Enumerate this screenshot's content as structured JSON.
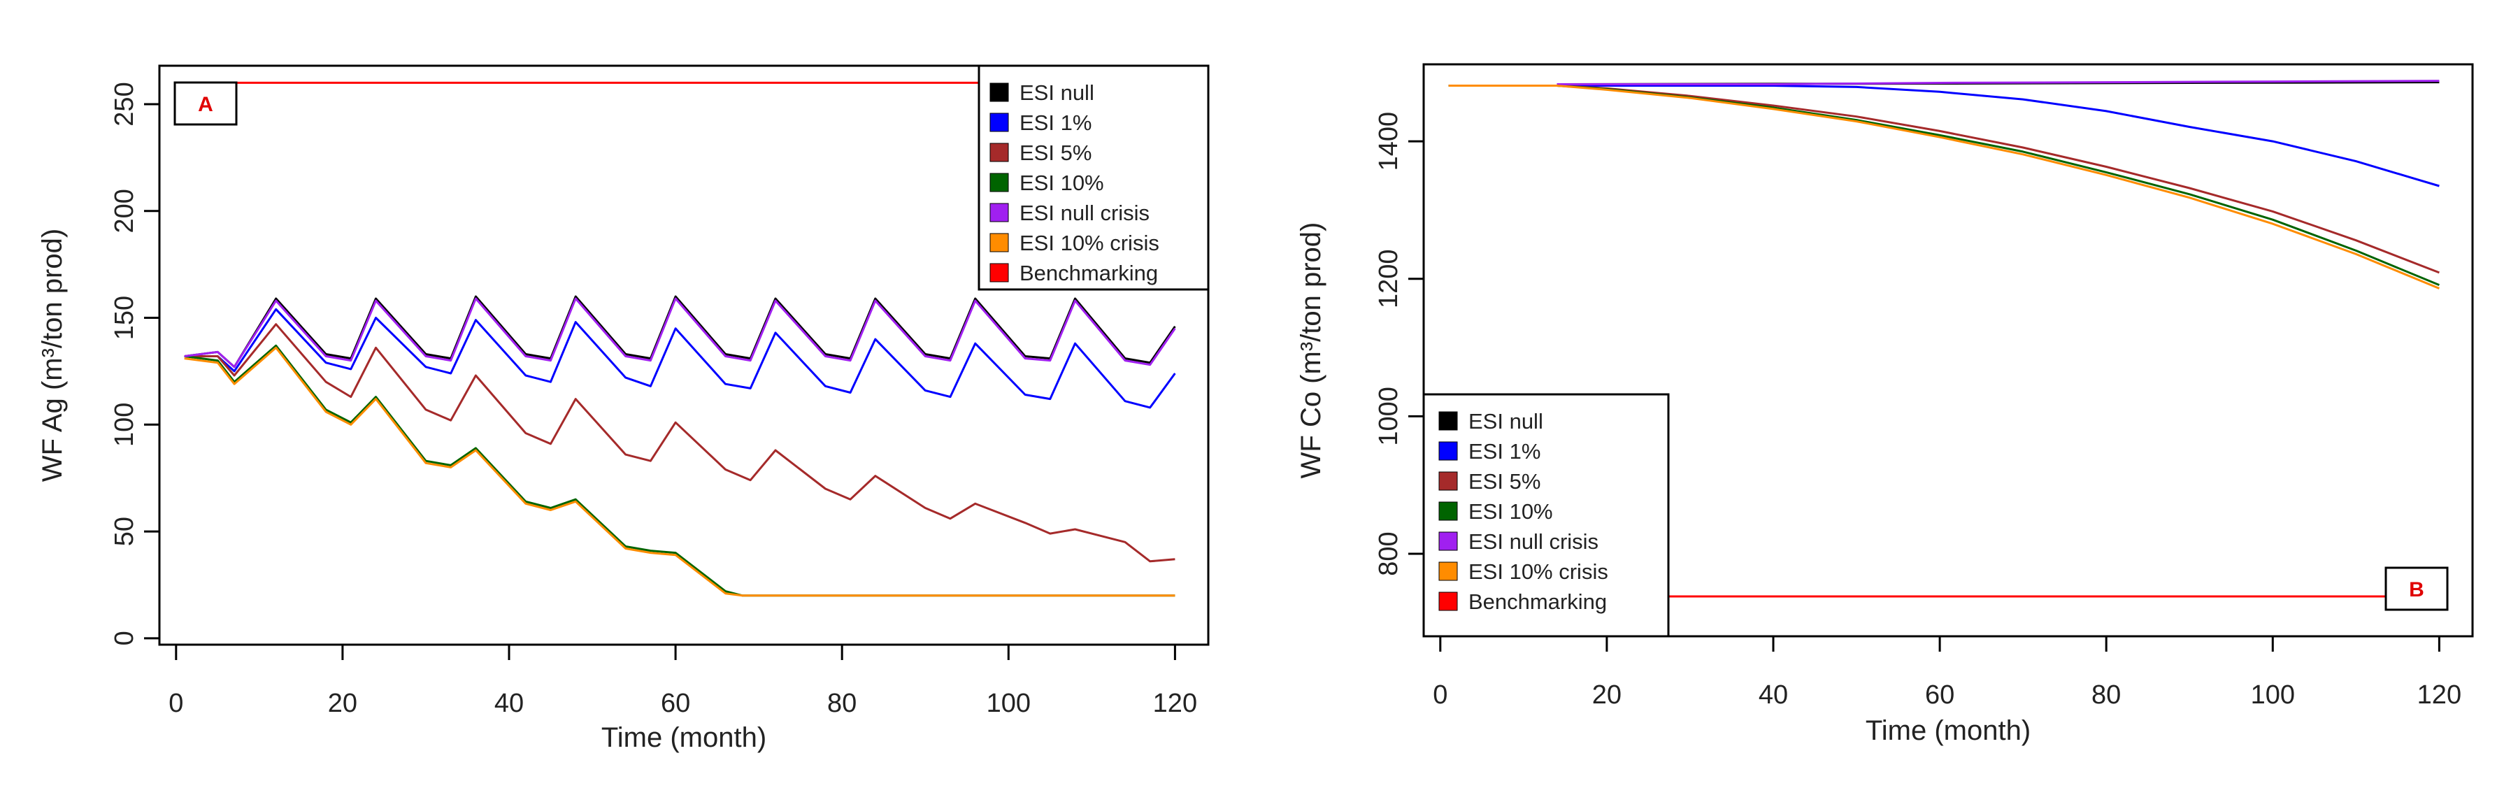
{
  "chart_data": [
    {
      "type": "line",
      "panel_label": "A",
      "title": "",
      "xlabel": "Time (month)",
      "ylabel": "WF Ag (m³/ton prod)",
      "xlim": [
        -2,
        124
      ],
      "ylim": [
        -3,
        268
      ],
      "x_ticks": [
        0,
        20,
        40,
        60,
        80,
        100,
        120
      ],
      "y_ticks": [
        0,
        50,
        100,
        150,
        200,
        250
      ],
      "legend_position": "top-right",
      "legend": [
        {
          "label": "ESI null",
          "color": "#000000"
        },
        {
          "label": "ESI 1%",
          "color": "#0000ff"
        },
        {
          "label": "ESI 5%",
          "color": "#a52a2a"
        },
        {
          "label": "ESI 10%",
          "color": "#006400"
        },
        {
          "label": "ESI null crisis",
          "color": "#a020f0"
        },
        {
          "label": "ESI 10% crisis",
          "color": "#ff8c00"
        },
        {
          "label": "Benchmarking",
          "color": "#ff0000"
        }
      ],
      "series": [
        {
          "name": "ESI null",
          "color": "#000000",
          "x": [
            1,
            5,
            7,
            12,
            18,
            21,
            24,
            30,
            33,
            36,
            42,
            45,
            48,
            54,
            57,
            60,
            66,
            69,
            72,
            78,
            81,
            84,
            90,
            93,
            96,
            102,
            105,
            108,
            114,
            117,
            120
          ],
          "values": [
            132,
            134,
            127,
            159,
            133,
            131,
            159,
            133,
            131,
            160,
            133,
            131,
            160,
            133,
            131,
            160,
            133,
            131,
            159,
            133,
            131,
            159,
            133,
            131,
            159,
            132,
            131,
            159,
            131,
            129,
            146
          ]
        },
        {
          "name": "ESI 1%",
          "color": "#0000ff",
          "x": [
            1,
            5,
            7,
            12,
            18,
            21,
            24,
            30,
            33,
            36,
            42,
            45,
            48,
            54,
            57,
            60,
            66,
            69,
            72,
            78,
            81,
            84,
            90,
            93,
            96,
            102,
            105,
            108,
            114,
            117,
            120
          ],
          "values": [
            132,
            132,
            125,
            154,
            129,
            126,
            150,
            127,
            124,
            149,
            123,
            120,
            148,
            122,
            118,
            145,
            119,
            117,
            143,
            118,
            115,
            140,
            116,
            113,
            138,
            114,
            112,
            138,
            111,
            108,
            124
          ]
        },
        {
          "name": "ESI 5%",
          "color": "#a52a2a",
          "x": [
            1,
            5,
            7,
            12,
            18,
            21,
            24,
            30,
            33,
            36,
            42,
            45,
            48,
            54,
            57,
            60,
            66,
            69,
            72,
            78,
            81,
            84,
            90,
            93,
            96,
            102,
            105,
            108,
            114,
            117,
            120
          ],
          "values": [
            132,
            132,
            123,
            147,
            120,
            113,
            136,
            107,
            102,
            123,
            96,
            91,
            112,
            86,
            83,
            101,
            79,
            74,
            88,
            70,
            65,
            76,
            61,
            56,
            63,
            54,
            49,
            51,
            45,
            36,
            37
          ]
        },
        {
          "name": "ESI 10%",
          "color": "#006400",
          "x": [
            1,
            5,
            7,
            12,
            18,
            21,
            24,
            30,
            33,
            36,
            42,
            45,
            48,
            54,
            57,
            60,
            66,
            68,
            72,
            84,
            96,
            108,
            120
          ],
          "values": [
            132,
            130,
            120,
            137,
            107,
            101,
            113,
            83,
            81,
            89,
            64,
            61,
            65,
            43,
            41,
            40,
            22,
            20,
            20,
            20,
            20,
            20,
            20
          ]
        },
        {
          "name": "ESI null crisis",
          "color": "#a020f0",
          "x": [
            1,
            5,
            7,
            12,
            18,
            21,
            24,
            30,
            33,
            36,
            42,
            45,
            48,
            54,
            57,
            60,
            66,
            69,
            72,
            78,
            81,
            84,
            90,
            93,
            96,
            102,
            105,
            108,
            114,
            117,
            120
          ],
          "values": [
            132,
            134,
            127,
            158,
            132,
            130,
            158,
            132,
            130,
            159,
            132,
            130,
            159,
            132,
            130,
            159,
            132,
            130,
            158,
            132,
            130,
            158,
            132,
            130,
            158,
            131,
            130,
            158,
            130,
            128,
            145
          ]
        },
        {
          "name": "ESI 10% crisis",
          "color": "#ff8c00",
          "x": [
            1,
            5,
            7,
            12,
            18,
            21,
            24,
            30,
            33,
            36,
            42,
            45,
            48,
            54,
            57,
            60,
            66,
            68,
            72,
            84,
            96,
            108,
            120
          ],
          "values": [
            131,
            129,
            119,
            136,
            106,
            100,
            112,
            82,
            80,
            88,
            63,
            60,
            64,
            42,
            40,
            39,
            21,
            20,
            20,
            20,
            20,
            20,
            20
          ]
        },
        {
          "name": "Benchmarking",
          "color": "#ff0000",
          "x": [
            0,
            120
          ],
          "values": [
            260,
            260
          ]
        }
      ]
    },
    {
      "type": "line",
      "panel_label": "B",
      "title": "",
      "xlabel": "Time (month)",
      "ylabel": "WF Co (m³/ton prod)",
      "xlim": [
        -2,
        124
      ],
      "ylim": [
        680,
        1512
      ],
      "x_ticks": [
        0,
        20,
        40,
        60,
        80,
        100,
        120
      ],
      "y_ticks": [
        800,
        1000,
        1200,
        1400
      ],
      "legend_position": "bottom-left",
      "legend": [
        {
          "label": "ESI null",
          "color": "#000000"
        },
        {
          "label": "ESI 1%",
          "color": "#0000ff"
        },
        {
          "label": "ESI 5%",
          "color": "#a52a2a"
        },
        {
          "label": "ESI 10%",
          "color": "#006400"
        },
        {
          "label": "ESI null crisis",
          "color": "#a020f0"
        },
        {
          "label": "ESI 10% crisis",
          "color": "#ff8c00"
        },
        {
          "label": "Benchmarking",
          "color": "#ff0000"
        }
      ],
      "series": [
        {
          "name": "ESI null",
          "color": "#000000",
          "x": [
            14,
            60,
            90,
            120
          ],
          "values": [
            1483,
            1484,
            1485,
            1486
          ]
        },
        {
          "name": "ESI 1%",
          "color": "#0000ff",
          "x": [
            1,
            14,
            40,
            50,
            60,
            70,
            80,
            90,
            100,
            110,
            120
          ],
          "values": [
            1481,
            1481,
            1481,
            1479,
            1472,
            1461,
            1444,
            1421,
            1400,
            1371,
            1335
          ]
        },
        {
          "name": "ESI 5%",
          "color": "#a52a2a",
          "x": [
            1,
            14,
            20,
            30,
            40,
            50,
            60,
            70,
            80,
            90,
            100,
            110,
            120
          ],
          "values": [
            1481,
            1481,
            1477,
            1466,
            1452,
            1436,
            1415,
            1391,
            1363,
            1332,
            1298,
            1256,
            1209
          ]
        },
        {
          "name": "ESI 10%",
          "color": "#006400",
          "x": [
            1,
            14,
            20,
            30,
            40,
            50,
            60,
            70,
            80,
            90,
            100,
            110,
            120
          ],
          "values": [
            1481,
            1481,
            1476,
            1464,
            1449,
            1431,
            1409,
            1385,
            1355,
            1323,
            1286,
            1241,
            1191
          ]
        },
        {
          "name": "ESI null crisis",
          "color": "#a020f0",
          "x": [
            14,
            40,
            60,
            80,
            100,
            120
          ],
          "values": [
            1483,
            1483,
            1485,
            1486,
            1487,
            1488
          ]
        },
        {
          "name": "ESI 10% crisis",
          "color": "#ff8c00",
          "x": [
            1,
            14,
            20,
            30,
            40,
            50,
            60,
            70,
            80,
            90,
            100,
            110,
            120
          ],
          "values": [
            1481,
            1481,
            1475,
            1463,
            1447,
            1429,
            1406,
            1381,
            1351,
            1318,
            1280,
            1236,
            1186
          ]
        },
        {
          "name": "Benchmarking",
          "color": "#ff0000",
          "x": [
            10,
            120
          ],
          "values": [
            738,
            738
          ]
        }
      ]
    }
  ]
}
